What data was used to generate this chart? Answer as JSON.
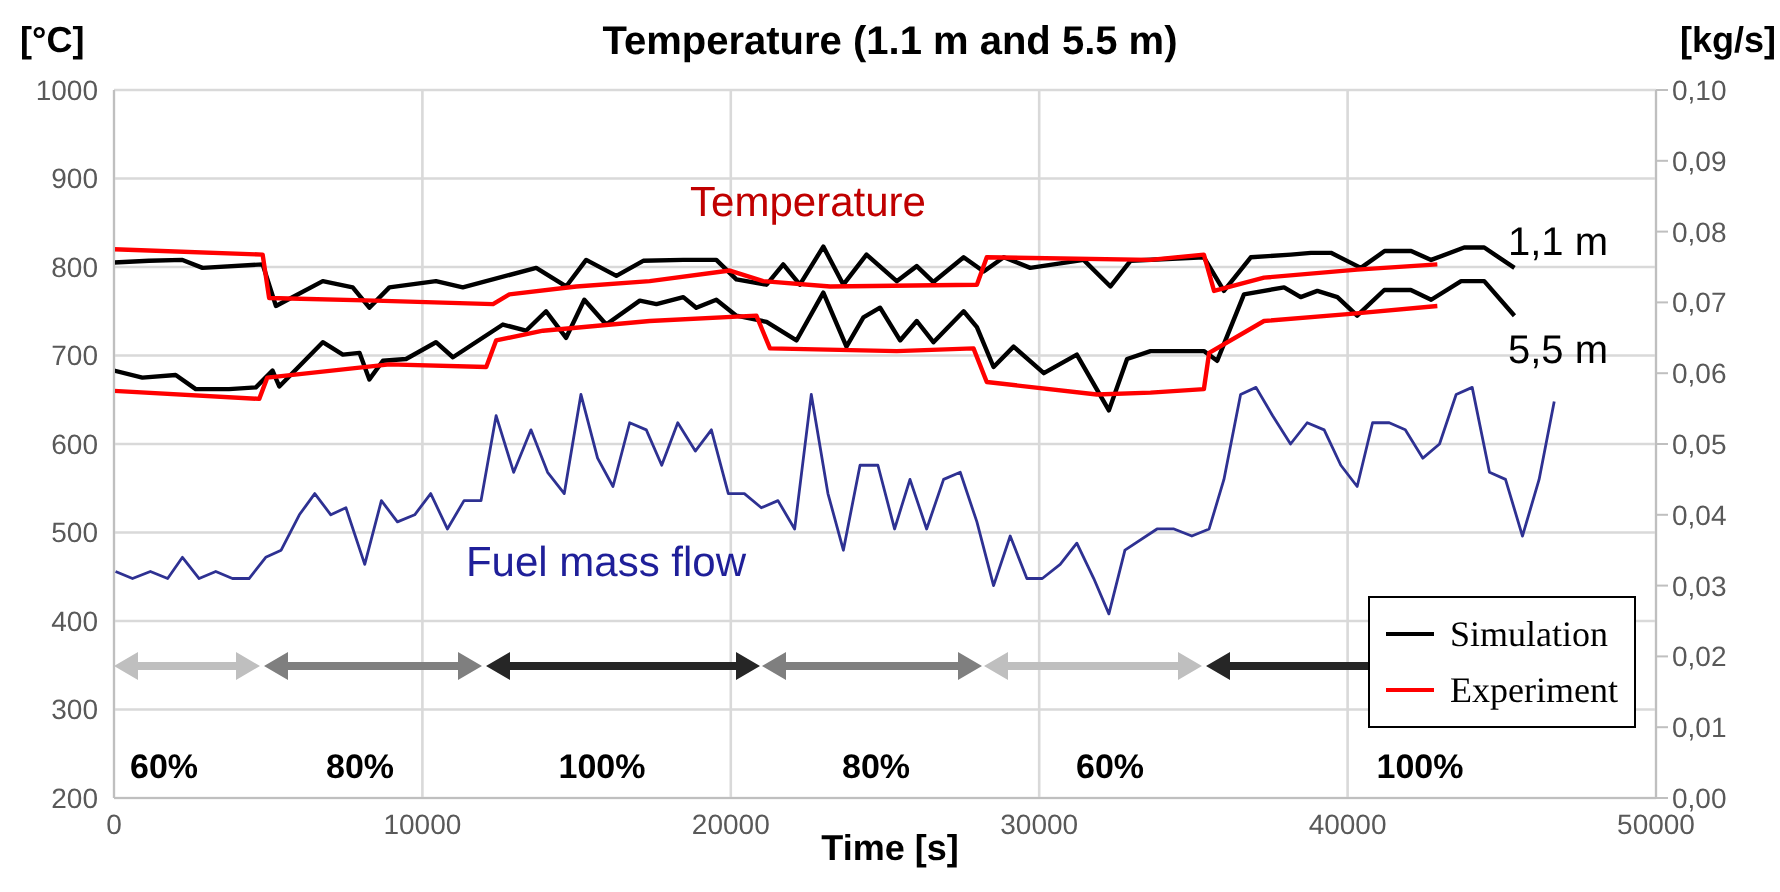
{
  "chart_data": {
    "type": "line",
    "title": "Temperature (1.1 m and 5.5 m)",
    "xlabel": "Time [s]",
    "ylabel": "[°C]",
    "y2label": "[kg/s]",
    "xlim": [
      0,
      50000
    ],
    "xticks": [
      0,
      10000,
      20000,
      30000,
      40000,
      50000
    ],
    "ylim": [
      200,
      1000
    ],
    "yticks": [
      200,
      300,
      400,
      500,
      600,
      700,
      800,
      900,
      1000
    ],
    "y2lim": [
      0,
      0.1
    ],
    "y2ticks": [
      {
        "value": 0,
        "label": "0,00"
      },
      {
        "value": 0.01,
        "label": "0,01"
      },
      {
        "value": 0.02,
        "label": "0,02"
      },
      {
        "value": 0.03,
        "label": "0,03"
      },
      {
        "value": 0.04,
        "label": "0,04"
      },
      {
        "value": 0.05,
        "label": "0,05"
      },
      {
        "value": 0.06,
        "label": "0,06"
      },
      {
        "value": 0.07,
        "label": "0,07"
      },
      {
        "value": 0.08,
        "label": "0,08"
      },
      {
        "value": 0.09,
        "label": "0,09"
      },
      {
        "value": 0.1,
        "label": "0,10"
      }
    ],
    "grid": true,
    "legend": "bottom right",
    "marker": "none",
    "line_style": "solid",
    "series": [
      {
        "name": "Simulation",
        "color": "#000000",
        "x": [
          0,
          1140,
          2220,
          2870,
          4820,
          5250,
          6770,
          7740,
          8280,
          8930,
          10440,
          11310,
          13690,
          14660,
          15310,
          16290,
          17160,
          18460,
          19530,
          20180,
          21160,
          21700,
          22240,
          23000,
          23650,
          24400,
          25380,
          26030,
          26570,
          27550,
          28200,
          28850,
          29710,
          31440,
          32310,
          32960,
          35340,
          35990,
          36860,
          38160,
          38810,
          39460,
          40430,
          41200,
          42060,
          42710,
          43780,
          44430,
          45410
        ],
        "values": [
          805,
          807,
          808,
          799,
          803,
          756,
          784,
          777,
          754,
          777,
          784,
          777,
          799,
          778,
          808,
          790,
          807,
          808,
          808,
          786,
          780,
          803,
          780,
          823,
          780,
          814,
          784,
          801,
          783,
          811,
          795,
          811,
          799,
          808,
          778,
          807,
          811,
          773,
          811,
          814,
          816,
          816,
          799,
          818,
          818,
          808,
          822,
          822,
          799
        ]
      },
      {
        "color": "#000000",
        "x": [
          0,
          920,
          2000,
          2650,
          3730,
          4600,
          5140,
          5360,
          6770,
          7420,
          7960,
          8280,
          8720,
          9470,
          10440,
          10990,
          12610,
          13360,
          14010,
          14660,
          15250,
          15960,
          17050,
          17590,
          18460,
          18880,
          19530,
          20180,
          21160,
          22130,
          23000,
          23750,
          24300,
          24840,
          25490,
          26030,
          26570,
          27550,
          27980,
          28520,
          29170,
          30150,
          31220,
          32260,
          32850,
          33610,
          35340,
          35770,
          36640,
          37940,
          38480,
          39020,
          39670,
          40310,
          41190,
          42050,
          42710,
          43680,
          44430,
          45410
        ],
        "values": [
          683,
          675,
          678,
          662,
          662,
          664,
          683,
          665,
          715,
          701,
          703,
          673,
          694,
          696,
          715,
          698,
          735,
          728,
          750,
          720,
          763,
          735,
          762,
          758,
          766,
          754,
          763,
          745,
          738,
          717,
          771,
          710,
          743,
          754,
          717,
          739,
          715,
          750,
          732,
          687,
          710,
          680,
          701,
          638,
          696,
          705,
          705,
          694,
          769,
          777,
          766,
          773,
          766,
          745,
          774,
          774,
          763,
          784,
          784,
          745
        ]
      },
      {
        "name": "Experiment",
        "color": "#ff0000",
        "x": [
          0,
          4820,
          5030,
          8470,
          12290,
          12820,
          14990,
          17370,
          19970,
          21050,
          23220,
          27980,
          28300,
          33610,
          35340,
          35670,
          37290,
          40310,
          42910
        ],
        "values": [
          820,
          814,
          765,
          762,
          758,
          769,
          778,
          784,
          796,
          784,
          778,
          780,
          811,
          808,
          814,
          773,
          788,
          797,
          803
        ]
      },
      {
        "color": "#ff0000",
        "x": [
          0,
          4710,
          4970,
          8930,
          12070,
          12390,
          13910,
          17370,
          20830,
          21270,
          25380,
          27870,
          28300,
          31870,
          33610,
          35340,
          35510,
          37290,
          40100,
          42910
        ],
        "values": [
          660,
          651,
          675,
          690,
          687,
          717,
          728,
          739,
          745,
          708,
          705,
          708,
          670,
          656,
          658,
          662,
          703,
          739,
          747,
          756
        ]
      },
      {
        "color": "#2e3192",
        "axis": "y2",
        "x": [
          50,
          600,
          1180,
          1740,
          2220,
          2760,
          3300,
          3840,
          4380,
          4920,
          5420,
          6010,
          6510,
          7030,
          7520,
          8130,
          8670,
          9190,
          9750,
          10270,
          10810,
          11350,
          11900,
          12390,
          12960,
          13520,
          14060,
          14600,
          15140,
          15680,
          16180,
          16720,
          17260,
          17760,
          18280,
          18850,
          19370,
          19920,
          20440,
          20990,
          21530,
          22070,
          22610,
          23150,
          23650,
          24190,
          24770,
          25310,
          25810,
          26350,
          26900,
          27440,
          27980,
          28520,
          29060,
          29600,
          30100,
          30680,
          31220,
          31770,
          32260,
          32780,
          33820,
          34370,
          34950,
          35510,
          35990,
          36530,
          37030,
          37570,
          38150,
          38690,
          39240,
          39780,
          40310,
          40810,
          41350,
          41870,
          42440,
          42980,
          43520,
          44040,
          44600,
          45120,
          45670,
          46210,
          46700
        ],
        "values": [
          0.032,
          0.031,
          0.032,
          0.031,
          0.034,
          0.031,
          0.032,
          0.031,
          0.031,
          0.034,
          0.035,
          0.04,
          0.043,
          0.04,
          0.041,
          0.033,
          0.042,
          0.039,
          0.04,
          0.043,
          0.038,
          0.042,
          0.042,
          0.054,
          0.046,
          0.052,
          0.046,
          0.043,
          0.057,
          0.048,
          0.044,
          0.053,
          0.052,
          0.047,
          0.053,
          0.049,
          0.052,
          0.043,
          0.043,
          0.041,
          0.042,
          0.038,
          0.057,
          0.043,
          0.035,
          0.047,
          0.047,
          0.038,
          0.045,
          0.038,
          0.045,
          0.046,
          0.039,
          0.03,
          0.037,
          0.031,
          0.031,
          0.033,
          0.036,
          0.031,
          0.026,
          0.035,
          0.038,
          0.038,
          0.037,
          0.038,
          0.045,
          0.057,
          0.058,
          0.054,
          0.05,
          0.053,
          0.052,
          0.047,
          0.044,
          0.053,
          0.053,
          0.052,
          0.048,
          0.05,
          0.057,
          0.058,
          0.046,
          0.045,
          0.037,
          0.045,
          0.056
        ]
      }
    ],
    "annotations": [
      "Temperature",
      "Fuel mass flow",
      "1,1 m",
      "5,5 m",
      "60%",
      "80%",
      "100%",
      "80%",
      "60%",
      "100%"
    ]
  }
}
